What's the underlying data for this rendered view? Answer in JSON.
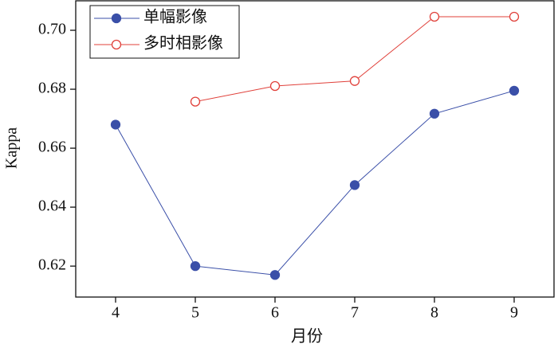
{
  "chart_data": {
    "type": "line",
    "x_label": "月份",
    "y_label": "Kappa",
    "x": [
      4,
      5,
      6,
      7,
      8,
      9
    ],
    "series": [
      {
        "name": "单幅影像",
        "color": "#3a4fa8",
        "marker": "filled",
        "values": [
          0.668,
          0.62,
          0.617,
          0.6475,
          0.6717,
          0.6795
        ]
      },
      {
        "name": "多时相影像",
        "color": "#e0403a",
        "marker": "open",
        "values": [
          null,
          0.6758,
          0.6811,
          0.6828,
          0.7046,
          0.7046
        ]
      }
    ],
    "xlim": [
      3.5,
      9.5
    ],
    "xticks": [
      4,
      5,
      6,
      7,
      8,
      9
    ],
    "ylim": [
      0.6095,
      0.71
    ],
    "yticks": [
      0.62,
      0.64,
      0.66,
      0.68,
      {
        "value": 0.7,
        "label": "0.70"
      }
    ],
    "legend": "upper-left"
  }
}
